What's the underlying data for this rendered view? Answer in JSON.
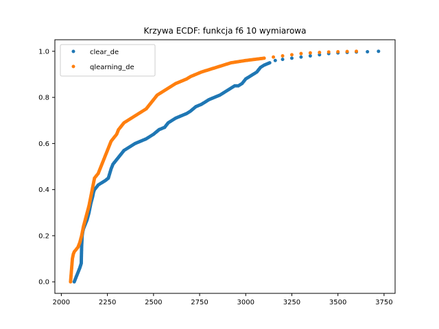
{
  "chart_data": {
    "type": "scatter",
    "title": "Krzywa ECDF: funkcja f6 10 wymiarowa",
    "xlabel": "",
    "ylabel": "",
    "xlim": [
      1965,
      3810
    ],
    "ylim": [
      -0.05,
      1.05
    ],
    "xticks": [
      2000,
      2250,
      2500,
      2750,
      3000,
      3250,
      3500,
      3750
    ],
    "yticks": [
      0.0,
      0.2,
      0.4,
      0.6,
      0.8,
      1.0
    ],
    "xtick_labels": [
      "2000",
      "2250",
      "2500",
      "2750",
      "3000",
      "3250",
      "3500",
      "3750"
    ],
    "ytick_labels": [
      "0.0",
      "0.2",
      "0.4",
      "0.6",
      "0.8",
      "1.0"
    ],
    "grid": false,
    "legend_position": "top-left",
    "series": [
      {
        "name": "clear_de",
        "color": "#1f77b4",
        "x": [
          2070,
          2080,
          2090,
          2100,
          2108,
          2110,
          2113,
          2115,
          2117,
          2120,
          2125,
          2130,
          2140,
          2150,
          2160,
          2170,
          2175,
          2180,
          2190,
          2200,
          2220,
          2240,
          2255,
          2270,
          2280,
          2300,
          2320,
          2340,
          2360,
          2380,
          2400,
          2430,
          2460,
          2480,
          2500,
          2530,
          2560,
          2580,
          2600,
          2620,
          2650,
          2680,
          2700,
          2730,
          2760,
          2780,
          2800,
          2830,
          2860,
          2880,
          2900,
          2920,
          2940,
          2960,
          2980,
          2990,
          3000,
          3020,
          3040,
          3060,
          3080,
          3100,
          3130,
          3160,
          3200,
          3250,
          3300,
          3350,
          3400,
          3450,
          3500,
          3550,
          3600,
          3660,
          3720
        ],
        "y": [
          0.0,
          0.02,
          0.04,
          0.06,
          0.08,
          0.15,
          0.2,
          0.21,
          0.22,
          0.23,
          0.24,
          0.25,
          0.27,
          0.3,
          0.34,
          0.37,
          0.39,
          0.4,
          0.41,
          0.42,
          0.43,
          0.44,
          0.45,
          0.49,
          0.51,
          0.53,
          0.55,
          0.57,
          0.58,
          0.59,
          0.6,
          0.61,
          0.62,
          0.63,
          0.64,
          0.66,
          0.67,
          0.69,
          0.7,
          0.71,
          0.72,
          0.73,
          0.74,
          0.76,
          0.77,
          0.78,
          0.79,
          0.8,
          0.81,
          0.82,
          0.83,
          0.84,
          0.85,
          0.85,
          0.86,
          0.87,
          0.88,
          0.89,
          0.9,
          0.91,
          0.93,
          0.94,
          0.95,
          0.96,
          0.965,
          0.97,
          0.975,
          0.98,
          0.985,
          0.99,
          0.993,
          0.995,
          0.997,
          0.998,
          1.0
        ]
      },
      {
        "name": "qlearning_de",
        "color": "#ff7f0e",
        "x": [
          2050,
          2052,
          2055,
          2058,
          2060,
          2065,
          2070,
          2080,
          2090,
          2100,
          2110,
          2120,
          2130,
          2140,
          2150,
          2160,
          2170,
          2175,
          2180,
          2190,
          2200,
          2210,
          2220,
          2230,
          2240,
          2250,
          2260,
          2270,
          2280,
          2290,
          2300,
          2310,
          2320,
          2340,
          2360,
          2380,
          2400,
          2420,
          2440,
          2460,
          2480,
          2500,
          2520,
          2540,
          2560,
          2580,
          2600,
          2620,
          2650,
          2680,
          2700,
          2730,
          2760,
          2800,
          2840,
          2880,
          2920,
          2960,
          3000,
          3050,
          3100,
          3150,
          3200,
          3250,
          3300,
          3350,
          3400,
          3450,
          3500,
          3550,
          3600
        ],
        "y": [
          0.0,
          0.02,
          0.05,
          0.08,
          0.1,
          0.12,
          0.13,
          0.14,
          0.15,
          0.17,
          0.2,
          0.24,
          0.27,
          0.3,
          0.33,
          0.37,
          0.41,
          0.43,
          0.45,
          0.46,
          0.47,
          0.49,
          0.51,
          0.53,
          0.55,
          0.57,
          0.59,
          0.61,
          0.62,
          0.63,
          0.64,
          0.66,
          0.67,
          0.69,
          0.7,
          0.71,
          0.72,
          0.73,
          0.74,
          0.75,
          0.77,
          0.79,
          0.81,
          0.82,
          0.83,
          0.84,
          0.85,
          0.86,
          0.87,
          0.88,
          0.89,
          0.9,
          0.91,
          0.92,
          0.93,
          0.94,
          0.95,
          0.955,
          0.96,
          0.965,
          0.97,
          0.975,
          0.98,
          0.985,
          0.99,
          0.993,
          0.995,
          0.997,
          0.998,
          0.999,
          1.0
        ]
      }
    ]
  }
}
